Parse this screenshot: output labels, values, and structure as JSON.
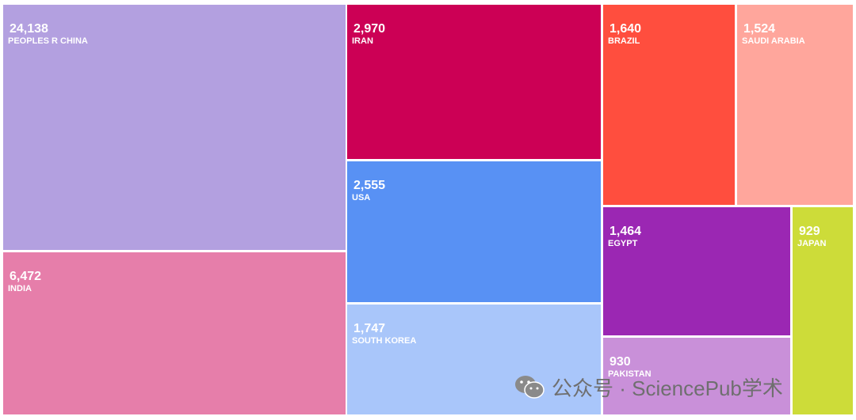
{
  "chart_data": {
    "type": "treemap",
    "items": [
      {
        "name": "PEOPLES R CHINA",
        "value_label": "24,138",
        "value": 24138,
        "color": "#b3a0e0"
      },
      {
        "name": "INDIA",
        "value_label": "6,472",
        "value": 6472,
        "color": "#e67eaa"
      },
      {
        "name": "IRAN",
        "value_label": "2,970",
        "value": 2970,
        "color": "#cc0055"
      },
      {
        "name": "USA",
        "value_label": "2,555",
        "value": 2555,
        "color": "#5891f4"
      },
      {
        "name": "SOUTH KOREA",
        "value_label": "1,747",
        "value": 1747,
        "color": "#a9c6fa"
      },
      {
        "name": "BRAZIL",
        "value_label": "1,640",
        "value": 1640,
        "color": "#ff4e3e"
      },
      {
        "name": "SAUDI ARABIA",
        "value_label": "1,524",
        "value": 1524,
        "color": "#ffa69c"
      },
      {
        "name": "EGYPT",
        "value_label": "1,464",
        "value": 1464,
        "color": "#9b27b3"
      },
      {
        "name": "PAKISTAN",
        "value_label": "930",
        "value": 930,
        "color": "#c990d9"
      },
      {
        "name": "JAPAN",
        "value_label": "929",
        "value": 929,
        "color": "#cddc39"
      }
    ]
  },
  "watermark": {
    "text": "公众号 · SciencePub学术",
    "icon": "wechat-icon"
  }
}
